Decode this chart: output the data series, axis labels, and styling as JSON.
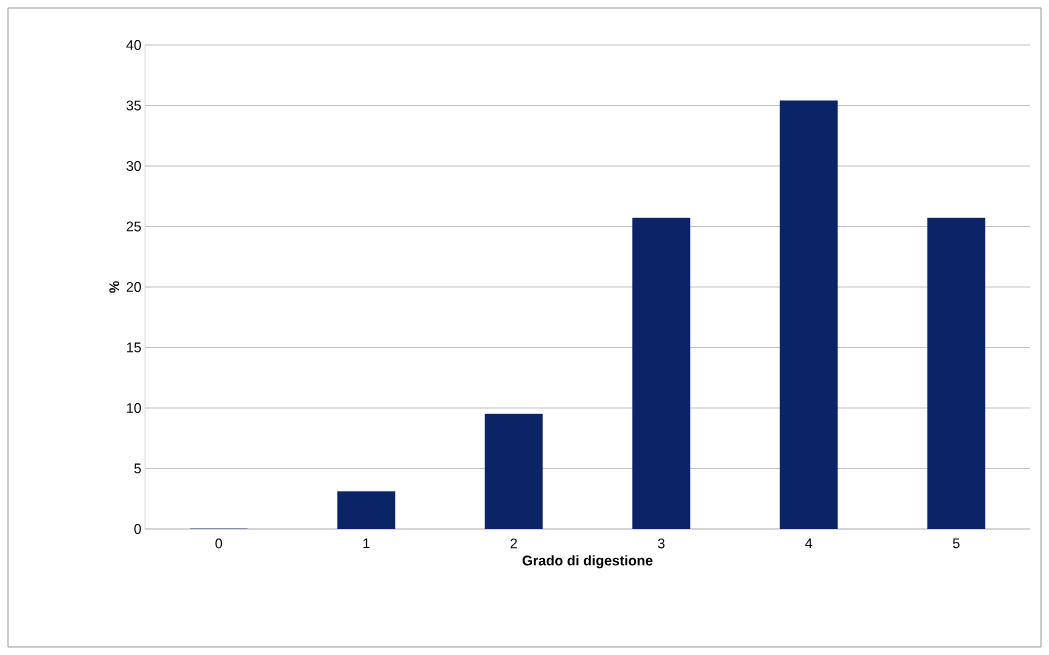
{
  "chart_data": {
    "type": "bar",
    "xlabel": "Grado di digestione",
    "ylabel": "%",
    "categories": [
      "0",
      "1",
      "2",
      "3",
      "4",
      "5"
    ],
    "values": [
      0,
      3.1,
      9.5,
      25.7,
      35.4,
      25.7
    ],
    "color": "#0b2466",
    "ylim": [
      0,
      40
    ],
    "yticks": [
      0,
      5,
      10,
      15,
      20,
      25,
      30,
      35,
      40
    ],
    "grid": "y"
  }
}
